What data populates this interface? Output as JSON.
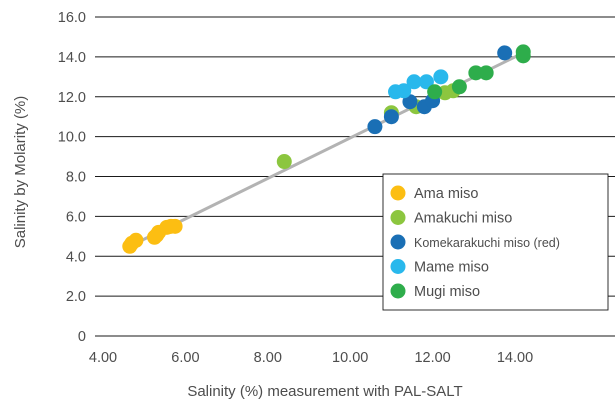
{
  "chart_data": {
    "type": "scatter",
    "xlabel": "Salinity (%) measurement with PAL-SALT",
    "ylabel": "Salinity by Molarity (%)",
    "xlim": [
      4.0,
      14.0
    ],
    "ylim": [
      0,
      16.0
    ],
    "x_ticks": [
      "4.00",
      "6.00",
      "8.00",
      "10.00",
      "12.00",
      "14.00"
    ],
    "y_ticks": [
      "0",
      "2.0",
      "4.0",
      "6.0",
      "8.0",
      "10.0",
      "12.0",
      "14.0",
      "16.0"
    ],
    "grid": "horizontal",
    "legend_position": "lower-right",
    "trendline": {
      "x": [
        4.65,
        14.2
      ],
      "y": [
        4.5,
        14.2
      ],
      "color": "#b3b3b3"
    },
    "series": [
      {
        "name": "Ama miso",
        "color": "#fcbe12",
        "points": [
          [
            4.65,
            4.5
          ],
          [
            4.7,
            4.65
          ],
          [
            4.8,
            4.8
          ],
          [
            5.25,
            4.95
          ],
          [
            5.3,
            5.05
          ],
          [
            5.35,
            5.2
          ],
          [
            5.55,
            5.45
          ],
          [
            5.65,
            5.5
          ],
          [
            5.75,
            5.5
          ]
        ]
      },
      {
        "name": "Amakuchi miso",
        "color": "#8cc63f",
        "points": [
          [
            8.4,
            8.75
          ],
          [
            11.0,
            11.2
          ],
          [
            11.6,
            11.5
          ],
          [
            12.3,
            12.2
          ],
          [
            12.5,
            12.3
          ]
        ]
      },
      {
        "name": "Komekarakuchi miso (red)",
        "color": "#1a6fb5",
        "points": [
          [
            10.6,
            10.5
          ],
          [
            11.0,
            11.0
          ],
          [
            11.45,
            11.75
          ],
          [
            11.8,
            11.5
          ],
          [
            12.0,
            11.8
          ],
          [
            13.75,
            14.2
          ]
        ]
      },
      {
        "name": "Mame miso",
        "color": "#29b8ec",
        "points": [
          [
            11.1,
            12.25
          ],
          [
            11.3,
            12.3
          ],
          [
            11.55,
            12.75
          ],
          [
            11.85,
            12.75
          ],
          [
            12.2,
            13.0
          ]
        ]
      },
      {
        "name": "Mugi miso",
        "color": "#2ead4b",
        "points": [
          [
            12.05,
            12.25
          ],
          [
            12.65,
            12.5
          ],
          [
            13.05,
            13.2
          ],
          [
            13.3,
            13.2
          ],
          [
            14.2,
            14.05
          ],
          [
            14.2,
            14.25
          ]
        ]
      }
    ]
  }
}
